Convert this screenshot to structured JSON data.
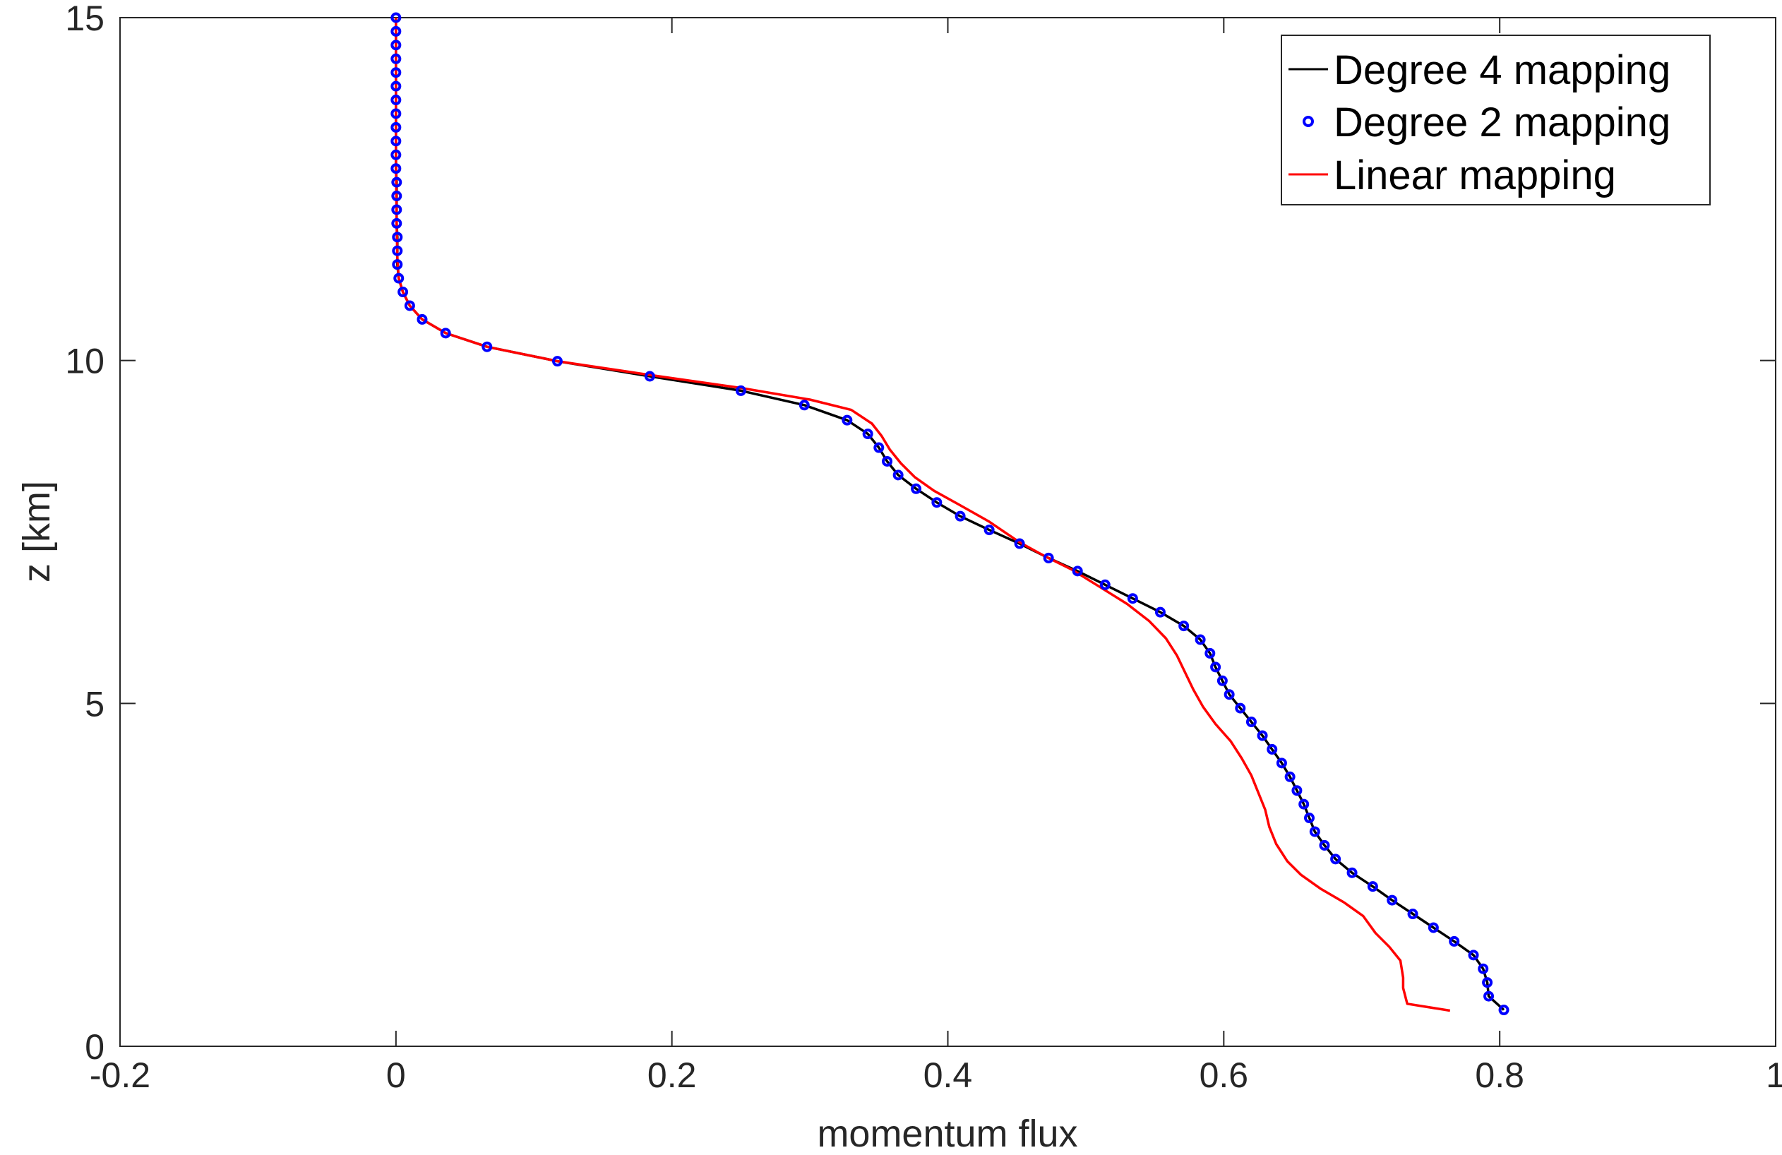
{
  "chart_data": {
    "type": "line",
    "title": "",
    "xlabel": "momentum flux",
    "ylabel": "z [km]",
    "xlim": [
      -0.2,
      1
    ],
    "ylim": [
      0,
      15
    ],
    "xticks": [
      "-0.2",
      "0",
      "0.2",
      "0.4",
      "0.6",
      "0.8",
      "1"
    ],
    "yticks": [
      "0",
      "5",
      "10",
      "15"
    ],
    "grid": false,
    "legend_position": "top-right",
    "series": [
      {
        "name": "Degree 4 mapping",
        "color": "#000000",
        "style": "line",
        "points": [
          [
            0,
            15.0
          ],
          [
            0,
            14.8
          ],
          [
            0,
            14.6
          ],
          [
            0,
            14.4
          ],
          [
            0,
            14.2
          ],
          [
            0,
            14.0
          ],
          [
            0,
            13.8
          ],
          [
            0,
            13.6
          ],
          [
            0,
            13.4
          ],
          [
            0,
            13.2
          ],
          [
            0,
            13.0
          ],
          [
            0,
            12.8
          ],
          [
            0.0005,
            12.6
          ],
          [
            0.0005,
            12.4
          ],
          [
            0.0005,
            12.2
          ],
          [
            0.0005,
            12.0
          ],
          [
            0.001,
            11.8
          ],
          [
            0.001,
            11.6
          ],
          [
            0.001,
            11.4
          ],
          [
            0.002,
            11.2
          ],
          [
            0.005,
            11.0
          ],
          [
            0.01,
            10.8
          ],
          [
            0.019,
            10.6
          ],
          [
            0.036,
            10.4
          ],
          [
            0.066,
            10.2
          ],
          [
            0.117,
            9.99
          ],
          [
            0.184,
            9.77
          ],
          [
            0.25,
            9.56
          ],
          [
            0.296,
            9.35
          ],
          [
            0.327,
            9.13
          ],
          [
            0.342,
            8.93
          ],
          [
            0.35,
            8.73
          ],
          [
            0.356,
            8.53
          ],
          [
            0.364,
            8.33
          ],
          [
            0.377,
            8.13
          ],
          [
            0.392,
            7.93
          ],
          [
            0.409,
            7.73
          ],
          [
            0.43,
            7.53
          ],
          [
            0.452,
            7.33
          ],
          [
            0.473,
            7.12
          ],
          [
            0.494,
            6.93
          ],
          [
            0.514,
            6.73
          ],
          [
            0.534,
            6.53
          ],
          [
            0.554,
            6.33
          ],
          [
            0.571,
            6.13
          ],
          [
            0.583,
            5.93
          ],
          [
            0.59,
            5.73
          ],
          [
            0.594,
            5.53
          ],
          [
            0.599,
            5.33
          ],
          [
            0.604,
            5.13
          ],
          [
            0.612,
            4.93
          ],
          [
            0.62,
            4.73
          ],
          [
            0.628,
            4.53
          ],
          [
            0.635,
            4.33
          ],
          [
            0.642,
            4.13
          ],
          [
            0.648,
            3.93
          ],
          [
            0.653,
            3.73
          ],
          [
            0.658,
            3.53
          ],
          [
            0.662,
            3.33
          ],
          [
            0.666,
            3.13
          ],
          [
            0.673,
            2.93
          ],
          [
            0.681,
            2.73
          ],
          [
            0.693,
            2.53
          ],
          [
            0.708,
            2.33
          ],
          [
            0.722,
            2.13
          ],
          [
            0.737,
            1.93
          ],
          [
            0.752,
            1.73
          ],
          [
            0.767,
            1.53
          ],
          [
            0.781,
            1.33
          ],
          [
            0.788,
            1.13
          ],
          [
            0.791,
            0.93
          ],
          [
            0.792,
            0.73
          ],
          [
            0.803,
            0.53
          ]
        ]
      },
      {
        "name": "Degree 2 mapping",
        "color": "#0000ff",
        "style": "markers",
        "points": [
          [
            0,
            15.0
          ],
          [
            0,
            14.8
          ],
          [
            0,
            14.6
          ],
          [
            0,
            14.4
          ],
          [
            0,
            14.2
          ],
          [
            0,
            14.0
          ],
          [
            0,
            13.8
          ],
          [
            0,
            13.6
          ],
          [
            0,
            13.4
          ],
          [
            0,
            13.2
          ],
          [
            0,
            13.0
          ],
          [
            0,
            12.8
          ],
          [
            0.0005,
            12.6
          ],
          [
            0.0005,
            12.4
          ],
          [
            0.0005,
            12.2
          ],
          [
            0.0005,
            12.0
          ],
          [
            0.001,
            11.8
          ],
          [
            0.001,
            11.6
          ],
          [
            0.001,
            11.4
          ],
          [
            0.002,
            11.2
          ],
          [
            0.005,
            11.0
          ],
          [
            0.01,
            10.8
          ],
          [
            0.019,
            10.6
          ],
          [
            0.036,
            10.4
          ],
          [
            0.066,
            10.2
          ],
          [
            0.117,
            9.99
          ],
          [
            0.184,
            9.77
          ],
          [
            0.25,
            9.56
          ],
          [
            0.296,
            9.35
          ],
          [
            0.327,
            9.13
          ],
          [
            0.342,
            8.93
          ],
          [
            0.35,
            8.73
          ],
          [
            0.356,
            8.53
          ],
          [
            0.364,
            8.33
          ],
          [
            0.377,
            8.13
          ],
          [
            0.392,
            7.93
          ],
          [
            0.409,
            7.73
          ],
          [
            0.43,
            7.53
          ],
          [
            0.452,
            7.33
          ],
          [
            0.473,
            7.12
          ],
          [
            0.494,
            6.93
          ],
          [
            0.514,
            6.73
          ],
          [
            0.534,
            6.53
          ],
          [
            0.554,
            6.33
          ],
          [
            0.571,
            6.13
          ],
          [
            0.583,
            5.93
          ],
          [
            0.59,
            5.73
          ],
          [
            0.594,
            5.53
          ],
          [
            0.599,
            5.33
          ],
          [
            0.604,
            5.13
          ],
          [
            0.612,
            4.93
          ],
          [
            0.62,
            4.73
          ],
          [
            0.628,
            4.53
          ],
          [
            0.635,
            4.33
          ],
          [
            0.642,
            4.13
          ],
          [
            0.648,
            3.93
          ],
          [
            0.653,
            3.73
          ],
          [
            0.658,
            3.53
          ],
          [
            0.662,
            3.33
          ],
          [
            0.666,
            3.13
          ],
          [
            0.673,
            2.93
          ],
          [
            0.681,
            2.73
          ],
          [
            0.693,
            2.53
          ],
          [
            0.708,
            2.33
          ],
          [
            0.722,
            2.13
          ],
          [
            0.737,
            1.93
          ],
          [
            0.752,
            1.73
          ],
          [
            0.767,
            1.53
          ],
          [
            0.781,
            1.33
          ],
          [
            0.788,
            1.13
          ],
          [
            0.791,
            0.93
          ],
          [
            0.792,
            0.73
          ],
          [
            0.803,
            0.53
          ]
        ]
      },
      {
        "name": "Linear mapping",
        "color": "#ff0000",
        "style": "line",
        "points": [
          [
            0,
            15.0
          ],
          [
            0,
            14.0
          ],
          [
            0,
            13.0
          ],
          [
            0.0005,
            12.0
          ],
          [
            0.001,
            11.5
          ],
          [
            0.002,
            11.2
          ],
          [
            0.005,
            11.0
          ],
          [
            0.01,
            10.8
          ],
          [
            0.019,
            10.6
          ],
          [
            0.036,
            10.4
          ],
          [
            0.066,
            10.2
          ],
          [
            0.117,
            9.99
          ],
          [
            0.184,
            9.79
          ],
          [
            0.25,
            9.6
          ],
          [
            0.3,
            9.43
          ],
          [
            0.33,
            9.28
          ],
          [
            0.345,
            9.08
          ],
          [
            0.352,
            8.9
          ],
          [
            0.358,
            8.7
          ],
          [
            0.366,
            8.5
          ],
          [
            0.376,
            8.3
          ],
          [
            0.39,
            8.1
          ],
          [
            0.408,
            7.9
          ],
          [
            0.43,
            7.65
          ],
          [
            0.452,
            7.35
          ],
          [
            0.47,
            7.15
          ],
          [
            0.49,
            6.95
          ],
          [
            0.51,
            6.7
          ],
          [
            0.53,
            6.45
          ],
          [
            0.546,
            6.2
          ],
          [
            0.558,
            5.95
          ],
          [
            0.566,
            5.7
          ],
          [
            0.572,
            5.45
          ],
          [
            0.578,
            5.2
          ],
          [
            0.585,
            4.95
          ],
          [
            0.594,
            4.7
          ],
          [
            0.605,
            4.45
          ],
          [
            0.613,
            4.2
          ],
          [
            0.62,
            3.95
          ],
          [
            0.625,
            3.7
          ],
          [
            0.63,
            3.45
          ],
          [
            0.633,
            3.2
          ],
          [
            0.638,
            2.95
          ],
          [
            0.646,
            2.7
          ],
          [
            0.656,
            2.5
          ],
          [
            0.67,
            2.3
          ],
          [
            0.687,
            2.1
          ],
          [
            0.701,
            1.9
          ],
          [
            0.71,
            1.65
          ],
          [
            0.72,
            1.45
          ],
          [
            0.728,
            1.25
          ],
          [
            0.73,
            1.0
          ],
          [
            0.73,
            0.85
          ],
          [
            0.733,
            0.62
          ],
          [
            0.764,
            0.52
          ]
        ]
      }
    ]
  }
}
